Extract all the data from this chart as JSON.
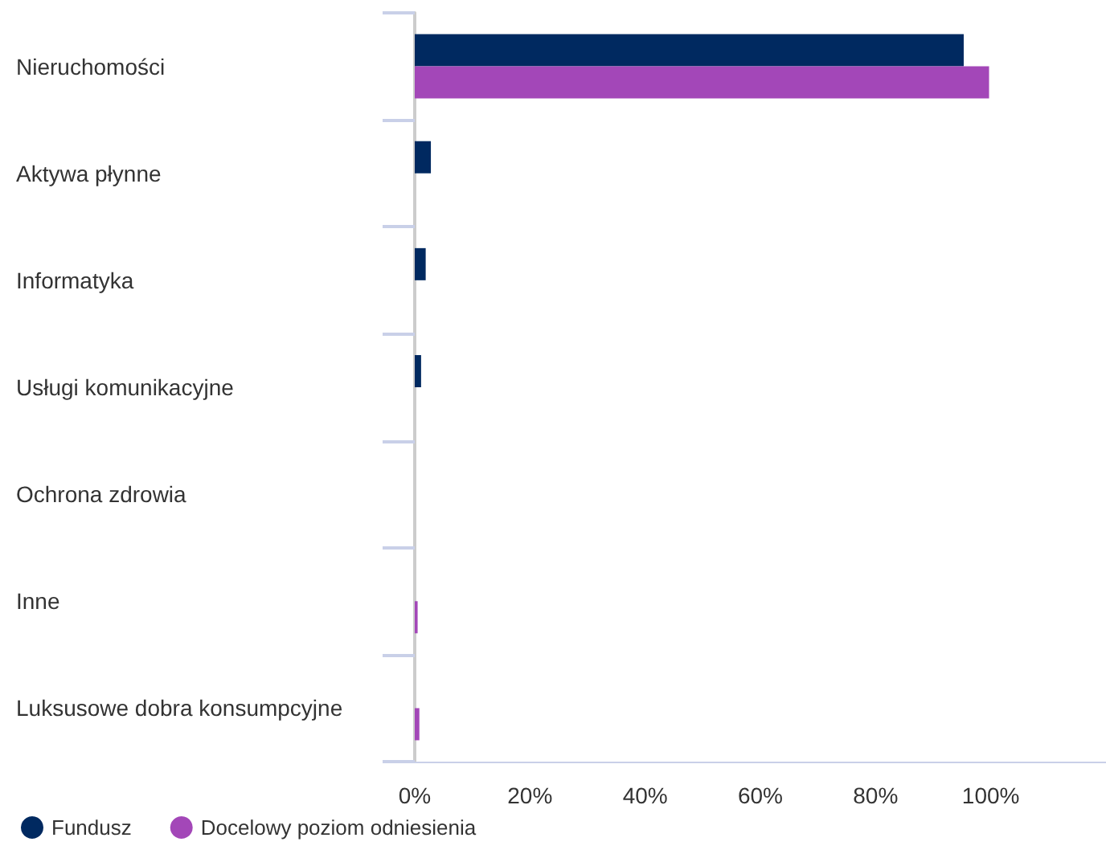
{
  "chart_data": {
    "type": "bar",
    "orientation": "horizontal",
    "categories": [
      "Nieruchomości",
      "Aktywa płynne",
      "Informatyka",
      "Usługi komunikacyjne",
      "Ochrona zdrowia",
      "Inne",
      "Luksusowe dobra konsumpcyjne"
    ],
    "series": [
      {
        "name": "Fundusz",
        "color": "#002960",
        "values": [
          95.3,
          2.8,
          1.9,
          1.1,
          0,
          0,
          0
        ]
      },
      {
        "name": "Docelowy poziom odniesienia",
        "color": "#a347b8",
        "values": [
          99.7,
          0,
          0,
          0,
          0,
          0.5,
          0.8
        ]
      }
    ],
    "xlim": [
      0,
      120
    ],
    "xticks": [
      {
        "value": 0,
        "label": "0%"
      },
      {
        "value": 20,
        "label": "20%"
      },
      {
        "value": 40,
        "label": "40%"
      },
      {
        "value": 60,
        "label": "60%"
      },
      {
        "value": 80,
        "label": "80%"
      },
      {
        "value": 100,
        "label": "100%"
      }
    ],
    "grid": false,
    "legend": "bottom left"
  }
}
